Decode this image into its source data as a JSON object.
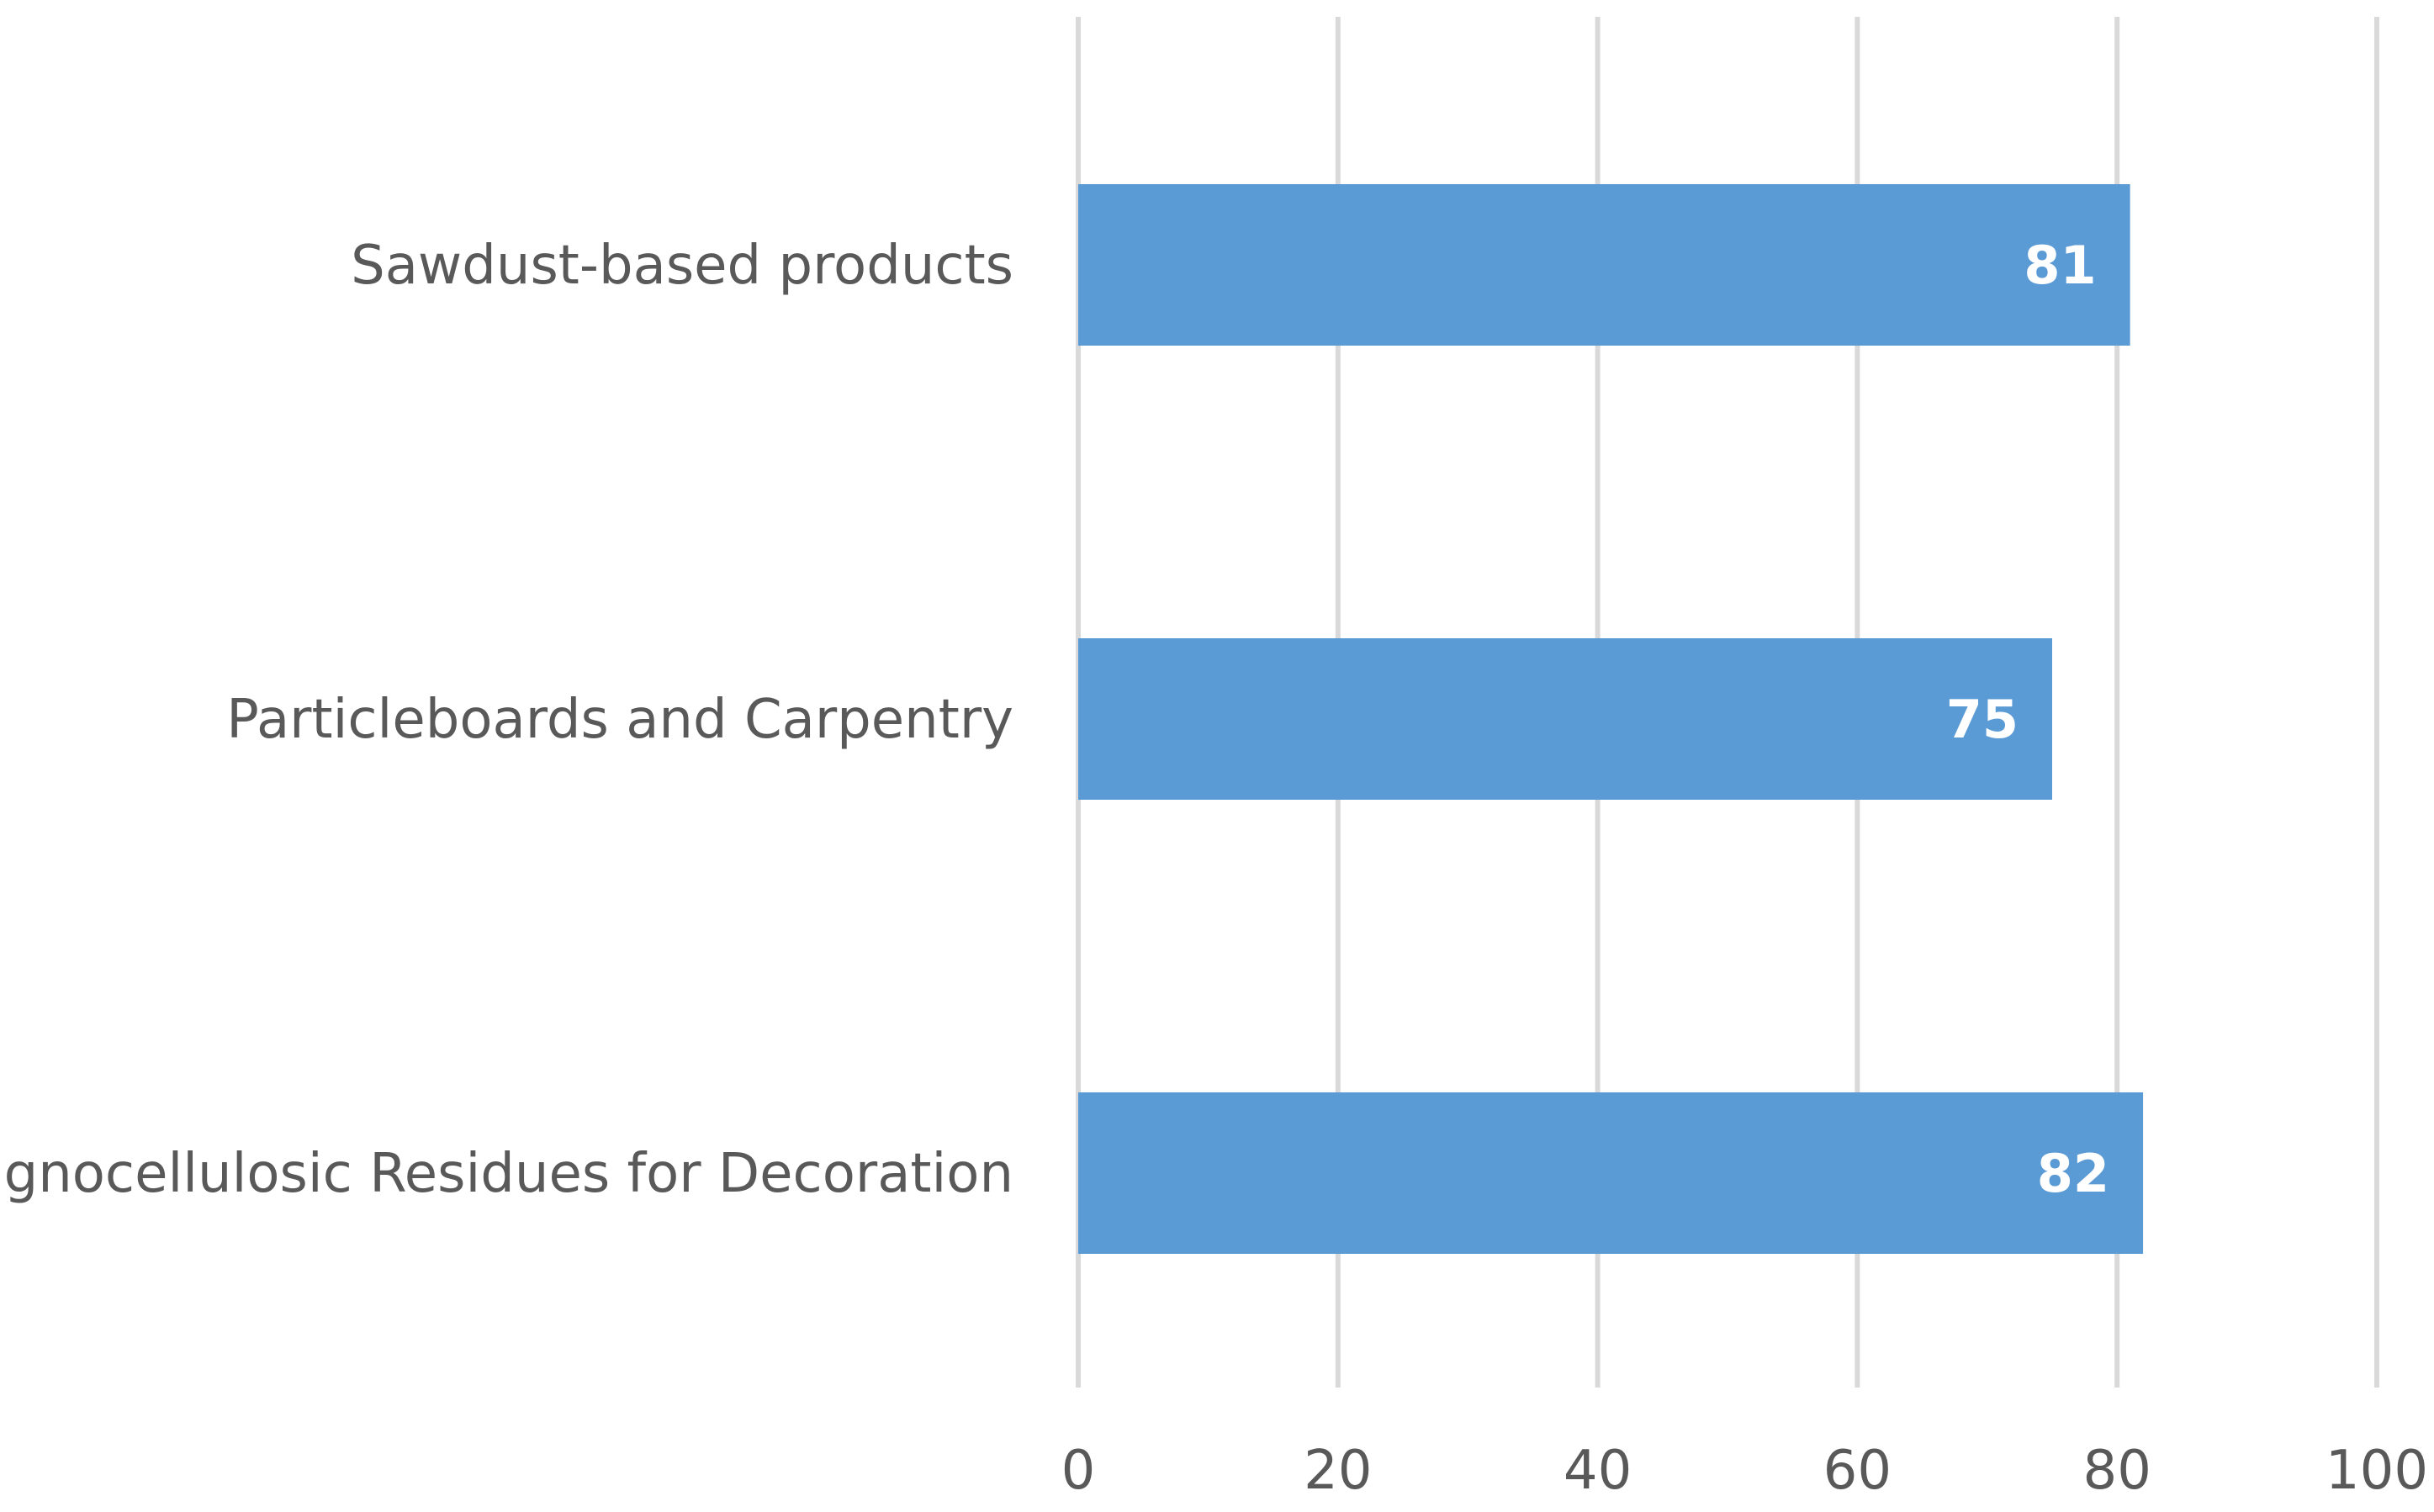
{
  "chart_data": {
    "type": "bar",
    "orientation": "horizontal",
    "categories": [
      "Sawdust-based products",
      "Particleboards and Carpentry",
      "Lignocellulosic Residues for Decoration"
    ],
    "values": [
      81,
      75,
      82
    ],
    "data_labels": [
      "81",
      "75",
      "82"
    ],
    "xlim": [
      0,
      100
    ],
    "x_ticks": [
      0,
      20,
      40,
      60,
      80,
      100
    ],
    "x_tick_labels": [
      "0",
      "20",
      "40",
      "60",
      "80",
      "100"
    ],
    "bar_color": "#5B9BD5",
    "gridline_color": "#D9D9D9",
    "grid": true,
    "legend": "none"
  }
}
